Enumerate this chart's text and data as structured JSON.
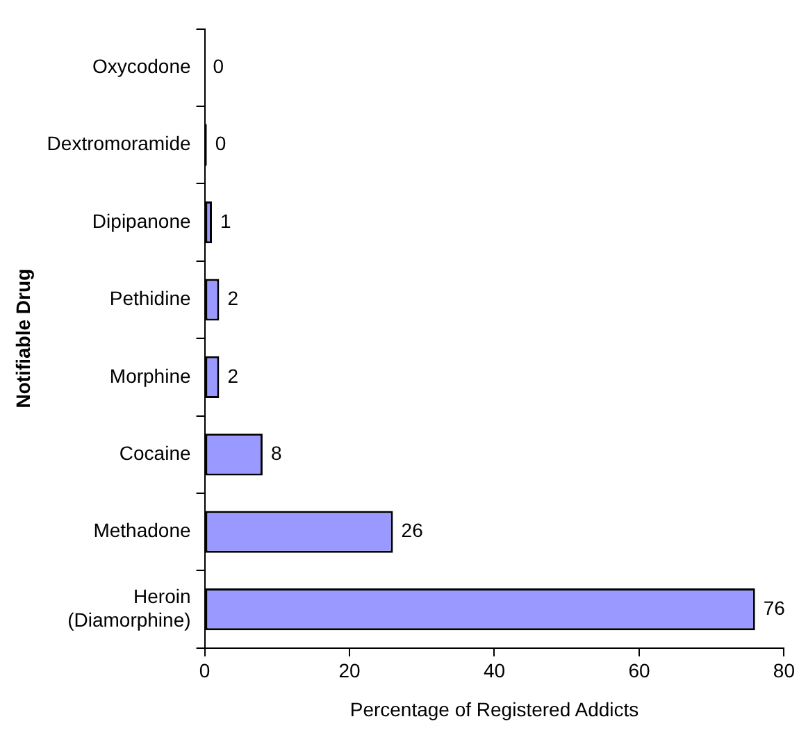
{
  "chart_data": {
    "type": "bar",
    "orientation": "horizontal",
    "xlabel": "Percentage of Registered Addicts",
    "ylabel": "Notifiable Drug",
    "categories": [
      "Oxycodone",
      "Dextromoramide",
      "Dipipanone",
      "Pethidine",
      "Morphine",
      "Cocaine",
      "Methadone",
      "Heroin\n(Diamorphine)"
    ],
    "values": [
      0,
      0.3,
      1,
      2,
      2,
      8,
      26,
      76
    ],
    "value_labels": [
      "0",
      "0",
      "1",
      "2",
      "2",
      "8",
      "26",
      "76"
    ],
    "colors": [
      "#9999ff",
      "#000000",
      "#9999ff",
      "#9999ff",
      "#9999ff",
      "#9999ff",
      "#9999ff",
      "#9999ff"
    ],
    "xlim": [
      0,
      80
    ],
    "xticks": [
      0,
      20,
      40,
      60,
      80
    ],
    "grid": false,
    "legend": false
  }
}
